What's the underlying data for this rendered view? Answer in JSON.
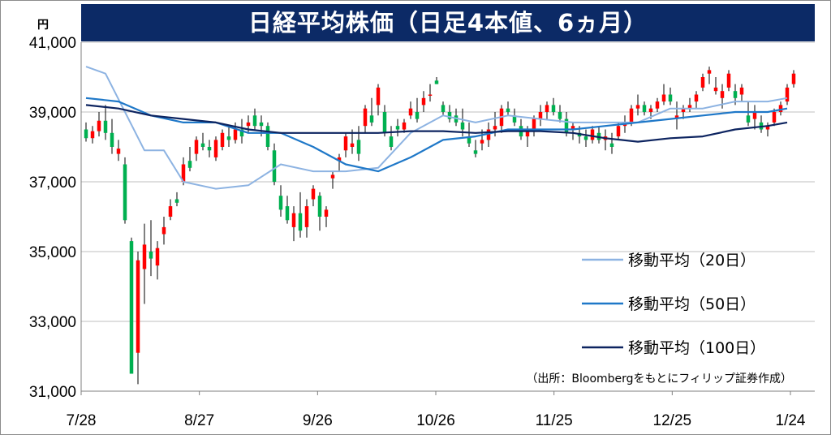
{
  "title": "日経平均株価（日足4本値、6ヵ月）",
  "y_unit": "円",
  "source_note": "（出所：Bloombergをもとにフィリップ証券作成）",
  "colors": {
    "up": "#ff0000",
    "down": "#00b050",
    "ma20": "#8db3e2",
    "ma50": "#1f78c8",
    "ma100": "#0d2460",
    "title_bg": "#0c2a66"
  },
  "chart_data": {
    "type": "candlestick",
    "title": "日経平均株価（日足4本値、6ヵ月）",
    "ylabel": "円",
    "ylim": [
      31000,
      41000
    ],
    "yticks": [
      31000,
      33000,
      35000,
      37000,
      39000,
      41000
    ],
    "ytick_labels": [
      "31,000",
      "33,000",
      "35,000",
      "37,000",
      "39,000",
      "41,000"
    ],
    "xtick_labels": [
      "7/28",
      "8/27",
      "9/26",
      "10/26",
      "11/25",
      "12/25",
      "1/24"
    ],
    "grid": true,
    "legend_position": "bottom-right",
    "candles": [
      [
        38500,
        38700,
        38150,
        38250
      ],
      [
        38250,
        38600,
        38100,
        38450
      ],
      [
        38450,
        39000,
        38300,
        38750
      ],
      [
        38750,
        39200,
        38200,
        38400
      ],
      [
        38400,
        38800,
        37800,
        38000
      ],
      [
        37800,
        38200,
        37600,
        37950
      ],
      [
        37500,
        37700,
        35800,
        35900
      ],
      [
        35300,
        35400,
        31500,
        31500
      ],
      [
        32100,
        35000,
        31200,
        34750
      ],
      [
        34500,
        35800,
        33500,
        35200
      ],
      [
        35000,
        35900,
        34300,
        34800
      ],
      [
        34600,
        35300,
        34200,
        35100
      ],
      [
        35500,
        36000,
        35200,
        35700
      ],
      [
        36000,
        36500,
        35900,
        36300
      ],
      [
        36500,
        36700,
        36300,
        36400
      ],
      [
        37000,
        37700,
        36900,
        37500
      ],
      [
        37600,
        38000,
        37300,
        37400
      ],
      [
        37800,
        38300,
        37600,
        38200
      ],
      [
        38100,
        38400,
        37900,
        38000
      ],
      [
        38000,
        38200,
        37700,
        37900
      ],
      [
        37700,
        38300,
        37600,
        38200
      ],
      [
        38000,
        38500,
        37900,
        38400
      ],
      [
        38300,
        38600,
        38000,
        38200
      ],
      [
        38200,
        38700,
        38100,
        38500
      ],
      [
        38500,
        38800,
        38100,
        38300
      ],
      [
        38600,
        38900,
        38400,
        38700
      ],
      [
        38900,
        39100,
        38500,
        38600
      ],
      [
        38700,
        38900,
        38300,
        38600
      ],
      [
        38600,
        38700,
        37900,
        38000
      ],
      [
        37900,
        38100,
        36900,
        37000
      ],
      [
        36600,
        36900,
        36000,
        36200
      ],
      [
        36300,
        36600,
        35800,
        35900
      ],
      [
        35700,
        36300,
        35300,
        36100
      ],
      [
        36100,
        36700,
        35400,
        35600
      ],
      [
        35700,
        36500,
        35400,
        36300
      ],
      [
        36500,
        36900,
        36300,
        36800
      ],
      [
        36600,
        36700,
        35600,
        36000
      ],
      [
        36000,
        36300,
        35700,
        36200
      ],
      [
        37100,
        37300,
        36800,
        37200
      ],
      [
        37600,
        37800,
        37300,
        37700
      ],
      [
        37900,
        38400,
        37700,
        38300
      ],
      [
        38000,
        38500,
        37800,
        38100
      ],
      [
        38200,
        38600,
        37600,
        37800
      ],
      [
        38600,
        39200,
        38400,
        39100
      ],
      [
        38900,
        39400,
        38600,
        38700
      ],
      [
        39200,
        39800,
        38900,
        39700
      ],
      [
        39000,
        39200,
        38300,
        38400
      ],
      [
        38300,
        38600,
        37900,
        38000
      ],
      [
        38600,
        38800,
        38300,
        38500
      ],
      [
        38500,
        38800,
        38400,
        38700
      ],
      [
        38900,
        39300,
        38800,
        39100
      ],
      [
        39000,
        39400,
        38700,
        38800
      ],
      [
        39200,
        39600,
        39000,
        39400
      ],
      [
        39500,
        39800,
        39300,
        39500
      ],
      [
        39900,
        40000,
        39800,
        39800
      ],
      [
        39200,
        39300,
        38900,
        39000
      ],
      [
        39000,
        39200,
        38700,
        38800
      ],
      [
        38900,
        39100,
        38600,
        38700
      ],
      [
        38700,
        39100,
        38300,
        38500
      ],
      [
        38300,
        38700,
        38000,
        38100
      ],
      [
        37900,
        38200,
        37700,
        37800
      ],
      [
        38100,
        38500,
        37900,
        38200
      ],
      [
        38200,
        38700,
        38000,
        38500
      ],
      [
        38500,
        39000,
        38300,
        38600
      ],
      [
        38600,
        39200,
        38400,
        39100
      ],
      [
        39100,
        39300,
        38900,
        39000
      ],
      [
        38900,
        39100,
        38600,
        38700
      ],
      [
        38600,
        38800,
        38200,
        38300
      ],
      [
        38300,
        38600,
        38000,
        38500
      ],
      [
        38500,
        38900,
        38300,
        38800
      ],
      [
        38800,
        39200,
        38600,
        39000
      ],
      [
        39000,
        39300,
        38800,
        39200
      ],
      [
        39200,
        39400,
        38900,
        39000
      ],
      [
        39000,
        39200,
        38700,
        38800
      ],
      [
        38800,
        39000,
        38300,
        38400
      ],
      [
        38500,
        38700,
        38200,
        38600
      ],
      [
        38400,
        38600,
        38100,
        38300
      ],
      [
        38300,
        38500,
        38000,
        38200
      ],
      [
        38200,
        38600,
        38100,
        38500
      ],
      [
        38400,
        38600,
        38100,
        38200
      ],
      [
        38200,
        38500,
        37900,
        38300
      ],
      [
        38100,
        38400,
        37800,
        38000
      ],
      [
        38300,
        38700,
        38200,
        38600
      ],
      [
        38600,
        38900,
        38400,
        38700
      ],
      [
        38700,
        39200,
        38600,
        39100
      ],
      [
        39100,
        39500,
        38900,
        39200
      ],
      [
        39200,
        39300,
        38900,
        39000
      ],
      [
        39000,
        39200,
        38800,
        39100
      ],
      [
        39100,
        39400,
        39000,
        39300
      ],
      [
        39300,
        39800,
        39200,
        39500
      ],
      [
        39500,
        39700,
        39200,
        39300
      ],
      [
        38800,
        39300,
        38500,
        38900
      ],
      [
        39000,
        39200,
        38800,
        39100
      ],
      [
        39100,
        39400,
        39000,
        39200
      ],
      [
        39300,
        39600,
        39100,
        39500
      ],
      [
        39700,
        40100,
        39600,
        40000
      ],
      [
        40100,
        40300,
        39800,
        40200
      ],
      [
        39600,
        40000,
        39500,
        39700
      ],
      [
        39400,
        39800,
        39100,
        39600
      ],
      [
        39700,
        40200,
        39600,
        40100
      ],
      [
        39600,
        39800,
        39200,
        39400
      ],
      [
        39500,
        39800,
        39300,
        39700
      ],
      [
        38900,
        39300,
        38600,
        38700
      ],
      [
        38800,
        39200,
        38500,
        39000
      ],
      [
        38700,
        38900,
        38400,
        38500
      ],
      [
        38500,
        38700,
        38300,
        38600
      ],
      [
        38700,
        39100,
        38600,
        39000
      ],
      [
        39000,
        39300,
        38900,
        39200
      ],
      [
        39300,
        39800,
        39200,
        39700
      ],
      [
        39800,
        40200,
        39700,
        40100
      ]
    ],
    "series": [
      {
        "name": "移動平均（20日）",
        "x": [
          0,
          3,
          6,
          9,
          12,
          15,
          20,
          25,
          30,
          35,
          40,
          45,
          50,
          55,
          60,
          65,
          70,
          75,
          80,
          85,
          90,
          95,
          100,
          105,
          108
        ],
        "values": [
          40300,
          40100,
          39000,
          37900,
          37900,
          37000,
          36800,
          36900,
          37500,
          37300,
          37300,
          37400,
          38400,
          38900,
          38700,
          38900,
          38800,
          38700,
          38700,
          38700,
          39100,
          39100,
          39300,
          39300,
          39400
        ]
      },
      {
        "name": "移動平均（50日）",
        "x": [
          0,
          5,
          10,
          15,
          20,
          25,
          30,
          35,
          40,
          45,
          50,
          55,
          60,
          65,
          70,
          75,
          80,
          85,
          90,
          95,
          100,
          105,
          108
        ],
        "values": [
          39400,
          39300,
          38900,
          38700,
          38700,
          38400,
          38400,
          38000,
          37500,
          37300,
          37700,
          38200,
          38300,
          38500,
          38500,
          38500,
          38600,
          38700,
          38800,
          38900,
          39000,
          39000,
          39100
        ]
      },
      {
        "name": "移動平均（100日）",
        "x": [
          0,
          5,
          10,
          15,
          20,
          25,
          30,
          35,
          40,
          45,
          50,
          55,
          60,
          65,
          70,
          75,
          80,
          85,
          90,
          95,
          100,
          105,
          108
        ],
        "values": [
          39200,
          39100,
          38900,
          38800,
          38700,
          38500,
          38400,
          38400,
          38400,
          38400,
          38450,
          38450,
          38400,
          38450,
          38450,
          38400,
          38250,
          38150,
          38250,
          38300,
          38500,
          38600,
          38700
        ]
      }
    ]
  }
}
